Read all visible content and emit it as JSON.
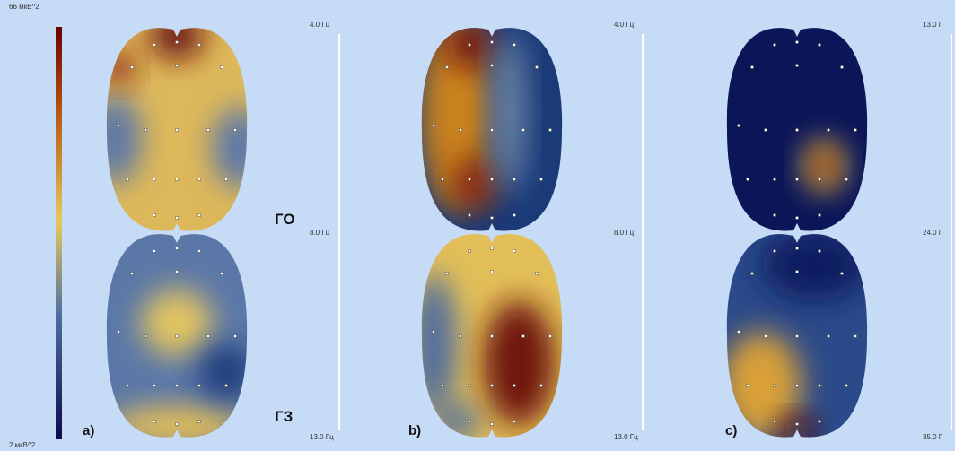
{
  "colorbar": {
    "max_label": "66 мкВ^2",
    "min_label": "2 мкВ^2"
  },
  "rows": [
    "ГО",
    "ГЗ"
  ],
  "panels": [
    {
      "label": "a)",
      "scale": [
        "4.0 Гц",
        "8.0 Гц",
        "13.0 Гц"
      ]
    },
    {
      "label": "b)",
      "scale": [
        "4.0 Гц",
        "8.0 Гц",
        "13.0 Гц"
      ]
    },
    {
      "label": "c)",
      "scale": [
        "13.0 Г",
        "24.0 Г",
        "35.0 Г"
      ]
    }
  ]
}
